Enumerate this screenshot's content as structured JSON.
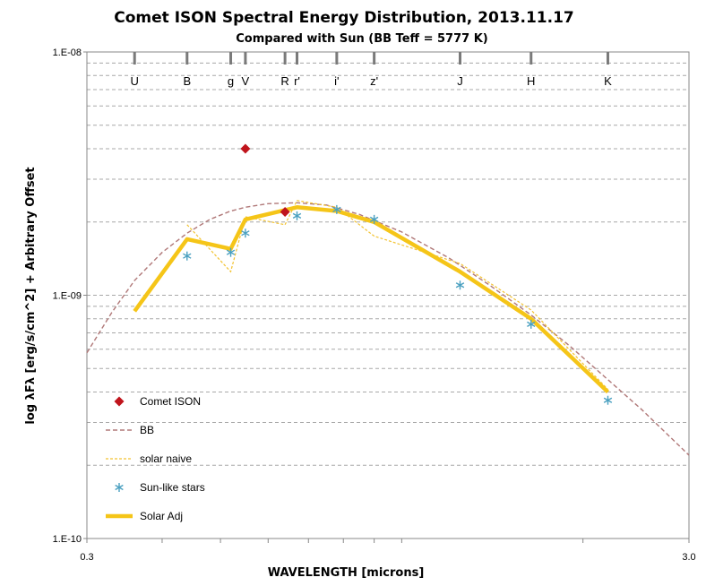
{
  "chart_data": {
    "type": "line",
    "title": "Comet ISON Spectral Energy Distribution,  2013.11.17",
    "subtitle": "Compared with Sun (BB Teff = 5777 K)",
    "xlabel": "WAVELENGTH [microns]",
    "ylabel": "log λFλ [erg/s/cm^2] + Arbitrary Offset",
    "x_scale": "log",
    "y_scale": "log",
    "xlim": [
      0.3,
      3.0
    ],
    "ylim": [
      1e-10,
      1e-08
    ],
    "x_tick_labels": [
      "0.3",
      "3.0"
    ],
    "y_tick_labels": [
      "1.E-10",
      "1.E-09",
      "1.E-08"
    ],
    "grid": "horizontal dashed",
    "legend_position": "lower-left inside",
    "colors": {
      "comet": "#c0141c",
      "bb": "#b07878",
      "solar_naive": "#f2c230",
      "sun_like": "#4aa0c0",
      "solar_adj": "#f5c518"
    },
    "filter_bands": [
      {
        "name": "U",
        "wavelength": 0.36
      },
      {
        "name": "B",
        "wavelength": 0.44
      },
      {
        "name": "g",
        "wavelength": 0.52
      },
      {
        "name": "V",
        "wavelength": 0.55
      },
      {
        "name": "R",
        "wavelength": 0.64
      },
      {
        "name": "r'",
        "wavelength": 0.67
      },
      {
        "name": "i'",
        "wavelength": 0.78
      },
      {
        "name": "z'",
        "wavelength": 0.9
      },
      {
        "name": "J",
        "wavelength": 1.25
      },
      {
        "name": "H",
        "wavelength": 1.64
      },
      {
        "name": "K",
        "wavelength": 2.2
      }
    ],
    "series": [
      {
        "name": "Comet ISON",
        "style": "marker-diamond",
        "x": [
          0.55,
          0.64
        ],
        "y": [
          4e-09,
          2.2e-09
        ]
      },
      {
        "name": "BB",
        "style": "dashed-line",
        "x": [
          0.3,
          0.33,
          0.36,
          0.4,
          0.44,
          0.48,
          0.52,
          0.55,
          0.6,
          0.67,
          0.75,
          0.85,
          1.0,
          1.2,
          1.4,
          1.64,
          1.9,
          2.2,
          2.5,
          3.0
        ],
        "y": [
          5.8e-10,
          8.5e-10,
          1.15e-09,
          1.5e-09,
          1.8e-09,
          2.05e-09,
          2.22e-09,
          2.3e-09,
          2.38e-09,
          2.4e-09,
          2.35e-09,
          2.15e-09,
          1.82e-09,
          1.42e-09,
          1.1e-09,
          8.3e-10,
          6.2e-10,
          4.5e-10,
          3.4e-10,
          2.2e-10
        ]
      },
      {
        "name": "solar naive",
        "style": "thin-dashed-line",
        "x": [
          0.44,
          0.52,
          0.55,
          0.64,
          0.67,
          0.78,
          0.9,
          1.25,
          1.64,
          2.2
        ],
        "y": [
          1.95e-09,
          1.25e-09,
          2.1e-09,
          1.95e-09,
          2.45e-09,
          2.3e-09,
          1.75e-09,
          1.35e-09,
          8.7e-10,
          4.1e-10
        ]
      },
      {
        "name": "Sun-like stars",
        "style": "marker-asterisk",
        "x": [
          0.44,
          0.52,
          0.55,
          0.67,
          0.78,
          0.9,
          1.25,
          1.64,
          2.2
        ],
        "y": [
          1.45e-09,
          1.5e-09,
          1.8e-09,
          2.12e-09,
          2.25e-09,
          2.05e-09,
          1.1e-09,
          7.6e-10,
          3.7e-10
        ]
      },
      {
        "name": "Solar Adj",
        "style": "thick-line",
        "x": [
          0.36,
          0.44,
          0.52,
          0.55,
          0.67,
          0.78,
          0.9,
          1.25,
          1.64,
          2.2
        ],
        "y": [
          8.6e-10,
          1.7e-09,
          1.55e-09,
          2.05e-09,
          2.3e-09,
          2.22e-09,
          2e-09,
          1.25e-09,
          8e-10,
          4e-10
        ]
      }
    ]
  }
}
